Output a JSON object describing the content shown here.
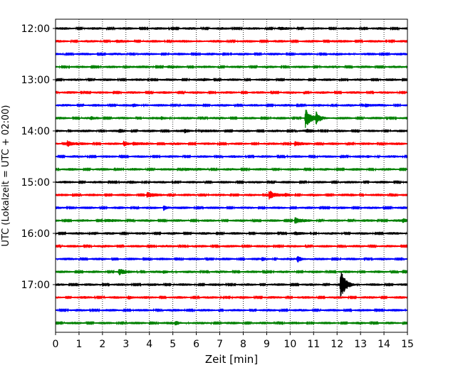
{
  "chart_data": {
    "type": "line",
    "title": "",
    "xlabel": "Zeit  [min]",
    "ylabel": "UTC (Lokalzeit = UTC + 02:00)",
    "xlim": [
      0,
      15
    ],
    "x_ticks": [
      0,
      1,
      2,
      3,
      4,
      5,
      6,
      7,
      8,
      9,
      10,
      11,
      12,
      13,
      14,
      15
    ],
    "x_tick_labels": [
      "0",
      "1",
      "2",
      "3",
      "4",
      "5",
      "6",
      "7",
      "8",
      "9",
      "10",
      "11",
      "12",
      "13",
      "14",
      "15"
    ],
    "y_tick_labels": [
      "12:00",
      "13:00",
      "14:00",
      "15:00",
      "16:00",
      "17:00"
    ],
    "y_tick_trace_index": [
      0,
      4,
      8,
      12,
      16,
      20
    ],
    "grid": {
      "vertical_dotted": true,
      "horizontal": false
    },
    "legend": "none",
    "trace_interval_minutes": 15,
    "trace_colors_cycle": [
      "#000000",
      "#ff0000",
      "#0000ff",
      "#008000"
    ],
    "traces": [
      {
        "start": "12:00",
        "color": "#000000",
        "events": [
          {
            "t": 9.5,
            "amp": 0.12
          }
        ]
      },
      {
        "start": "12:15",
        "color": "#ff0000",
        "events": [
          {
            "t": 2.6,
            "amp": 0.12
          },
          {
            "t": 5.0,
            "amp": 0.1
          },
          {
            "t": 6.1,
            "amp": 0.12
          },
          {
            "t": 11.7,
            "amp": 0.12
          }
        ]
      },
      {
        "start": "12:30",
        "color": "#0000ff",
        "events": [
          {
            "t": 12.5,
            "amp": 0.12
          }
        ]
      },
      {
        "start": "12:45",
        "color": "#008000",
        "events": [
          {
            "t": 3.1,
            "amp": 0.15
          },
          {
            "t": 4.8,
            "amp": 0.12
          }
        ]
      },
      {
        "start": "13:00",
        "color": "#000000",
        "events": [
          {
            "t": 6.3,
            "amp": 0.1
          }
        ]
      },
      {
        "start": "13:15",
        "color": "#ff0000",
        "events": []
      },
      {
        "start": "13:30",
        "color": "#0000ff",
        "events": [
          {
            "t": 3.3,
            "amp": 0.2
          },
          {
            "t": 13.2,
            "amp": 0.35
          }
        ]
      },
      {
        "start": "13:45",
        "color": "#008000",
        "events": [
          {
            "t": 1.5,
            "amp": 0.15
          },
          {
            "t": 4.5,
            "amp": 0.25
          },
          {
            "t": 10.65,
            "amp": 1.7
          },
          {
            "t": 11.1,
            "amp": 0.9
          }
        ]
      },
      {
        "start": "14:00",
        "color": "#000000",
        "events": [
          {
            "t": 0.6,
            "amp": 0.2
          },
          {
            "t": 2.7,
            "amp": 0.2
          },
          {
            "t": 5.5,
            "amp": 0.25
          },
          {
            "t": 6.2,
            "amp": 0.18
          },
          {
            "t": 10.7,
            "amp": 0.2
          }
        ]
      },
      {
        "start": "14:15",
        "color": "#ff0000",
        "events": [
          {
            "t": 0.5,
            "amp": 0.55
          },
          {
            "t": 2.9,
            "amp": 0.45
          },
          {
            "t": 3.3,
            "amp": 0.25
          },
          {
            "t": 10.2,
            "amp": 0.3
          }
        ]
      },
      {
        "start": "14:30",
        "color": "#0000ff",
        "events": [
          {
            "t": 13.3,
            "amp": 0.12
          }
        ]
      },
      {
        "start": "14:45",
        "color": "#008000",
        "events": [
          {
            "t": 5.5,
            "amp": 0.25
          }
        ]
      },
      {
        "start": "15:00",
        "color": "#000000",
        "events": [
          {
            "t": 3.2,
            "amp": 0.12
          }
        ]
      },
      {
        "start": "15:15",
        "color": "#ff0000",
        "events": [
          {
            "t": 3.9,
            "amp": 0.45
          },
          {
            "t": 9.1,
            "amp": 0.85
          },
          {
            "t": 9.8,
            "amp": 0.15
          },
          {
            "t": 12.6,
            "amp": 0.12
          }
        ]
      },
      {
        "start": "15:30",
        "color": "#0000ff",
        "events": [
          {
            "t": 4.6,
            "amp": 0.45
          }
        ]
      },
      {
        "start": "15:45",
        "color": "#008000",
        "events": [
          {
            "t": 2.1,
            "amp": 0.2
          },
          {
            "t": 10.2,
            "amp": 0.55
          },
          {
            "t": 14.8,
            "amp": 0.3
          }
        ]
      },
      {
        "start": "16:00",
        "color": "#000000",
        "events": [
          {
            "t": 10.2,
            "amp": 0.15
          }
        ]
      },
      {
        "start": "16:15",
        "color": "#ff0000",
        "events": []
      },
      {
        "start": "16:30",
        "color": "#0000ff",
        "events": [
          {
            "t": 8.8,
            "amp": 0.2
          },
          {
            "t": 10.3,
            "amp": 0.55
          }
        ]
      },
      {
        "start": "16:45",
        "color": "#008000",
        "events": [
          {
            "t": 2.7,
            "amp": 0.5
          },
          {
            "t": 4.6,
            "amp": 0.2
          },
          {
            "t": 14.8,
            "amp": 0.2
          }
        ]
      },
      {
        "start": "17:00",
        "color": "#000000",
        "events": [
          {
            "t": 12.15,
            "amp": 2.5
          }
        ]
      },
      {
        "start": "17:15",
        "color": "#ff0000",
        "events": [
          {
            "t": 3.1,
            "amp": 0.35
          }
        ]
      },
      {
        "start": "17:30",
        "color": "#0000ff",
        "events": []
      },
      {
        "start": "17:45",
        "color": "#008000",
        "events": [
          {
            "t": 5.1,
            "amp": 0.3
          }
        ]
      }
    ]
  }
}
